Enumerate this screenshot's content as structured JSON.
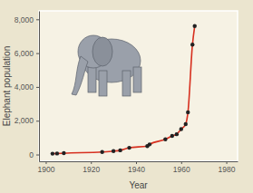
{
  "chart_data": {
    "type": "line",
    "x_label": "Year",
    "y_label": "Elephant population",
    "x": [
      1903,
      1905,
      1908,
      1925,
      1930,
      1933,
      1937,
      1945,
      1946,
      1953,
      1956,
      1958,
      1960,
      1962,
      1963,
      1965,
      1966
    ],
    "series": [
      {
        "color": "#d7301f",
        "marker": "circle",
        "values": [
          50,
          60,
          80,
          150,
          200,
          250,
          400,
          500,
          600,
          900,
          1100,
          1200,
          1500,
          1800,
          2500,
          6500,
          7600
        ]
      }
    ],
    "xlim": [
      1897,
      1985
    ],
    "xticks": [
      1900,
      1920,
      1940,
      1960,
      1980
    ],
    "ylim": [
      -400,
      8500
    ],
    "yticks": [
      0,
      {
        "value": 2000,
        "label": "2,000"
      },
      {
        "value": 4000,
        "label": "4,000"
      },
      {
        "value": 6000,
        "label": "6,000"
      },
      {
        "value": 8000,
        "label": "8,000"
      }
    ],
    "grid": false
  }
}
